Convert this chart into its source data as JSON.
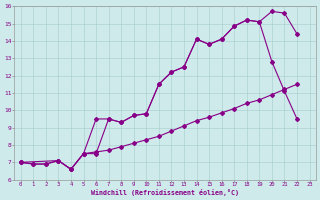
{
  "xlabel": "Windchill (Refroidissement éolien,°C)",
  "background_color": "#ceeaea",
  "line_color": "#880088",
  "xlim": [
    -0.5,
    23.5
  ],
  "ylim": [
    6,
    16
  ],
  "xticks": [
    0,
    1,
    2,
    3,
    4,
    5,
    6,
    7,
    8,
    9,
    10,
    11,
    12,
    13,
    14,
    15,
    16,
    17,
    18,
    19,
    20,
    21,
    22,
    23
  ],
  "yticks": [
    6,
    7,
    8,
    9,
    10,
    11,
    12,
    13,
    14,
    15,
    16
  ],
  "line1_x": [
    0,
    1,
    2,
    3,
    4,
    5,
    6,
    7,
    8,
    9,
    10,
    11,
    12,
    13,
    14,
    15,
    16,
    17,
    18,
    19,
    20,
    21,
    22
  ],
  "line1_y": [
    7.0,
    6.9,
    6.9,
    7.1,
    6.6,
    7.5,
    7.5,
    9.5,
    9.3,
    9.7,
    9.8,
    11.5,
    12.2,
    12.5,
    14.1,
    13.8,
    14.1,
    14.85,
    15.2,
    15.1,
    15.7,
    15.6,
    14.4
  ],
  "line2_x": [
    0,
    1,
    2,
    3,
    4,
    5,
    6,
    7,
    8,
    9,
    10,
    11,
    12,
    13,
    14,
    15,
    16,
    17,
    18,
    19,
    20,
    21,
    22
  ],
  "line2_y": [
    7.0,
    6.9,
    6.9,
    7.1,
    6.6,
    7.5,
    7.6,
    7.7,
    7.9,
    8.1,
    8.3,
    8.5,
    8.8,
    9.1,
    9.4,
    9.6,
    9.85,
    10.1,
    10.4,
    10.6,
    10.9,
    11.2,
    11.5
  ],
  "line3_x": [
    0,
    3,
    4,
    5,
    6,
    7,
    8,
    9,
    10,
    11,
    12,
    13,
    14,
    15,
    16,
    17,
    18,
    19,
    20,
    21,
    22
  ],
  "line3_y": [
    7.0,
    7.1,
    6.6,
    7.5,
    9.5,
    9.5,
    9.3,
    9.7,
    9.8,
    11.5,
    12.2,
    12.5,
    14.1,
    13.8,
    14.1,
    14.85,
    15.2,
    15.1,
    12.8,
    11.1,
    9.5
  ]
}
